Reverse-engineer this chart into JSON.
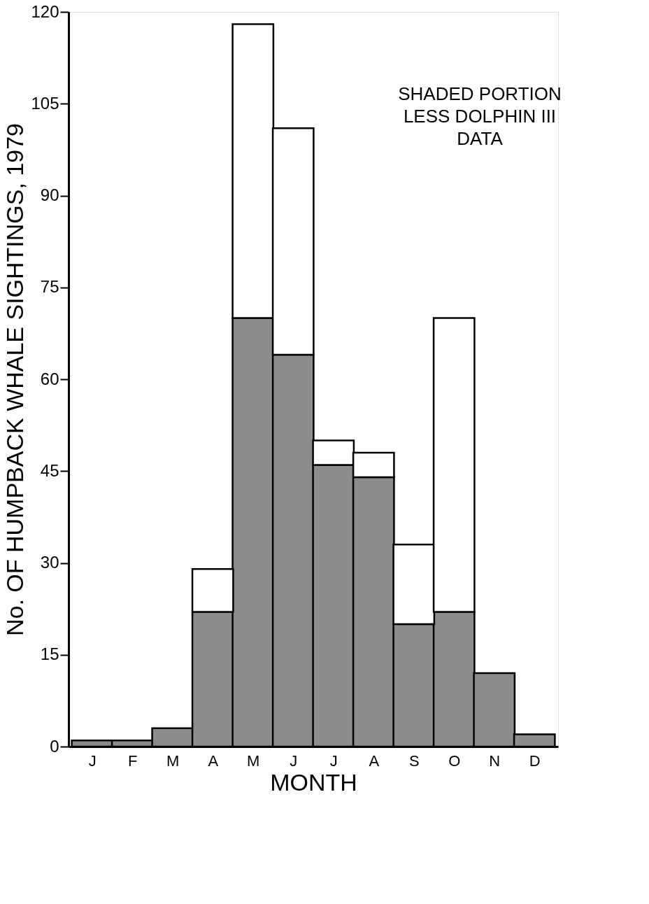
{
  "chart_data": {
    "type": "bar",
    "stacked": true,
    "xlabel": "MONTH",
    "ylabel": "No. OF HUMPBACK WHALE SIGHTINGS, 1979",
    "categories": [
      "J",
      "F",
      "M",
      "A",
      "M",
      "J",
      "J",
      "A",
      "S",
      "O",
      "N",
      "D"
    ],
    "series": [
      {
        "color": "#8c8c8c",
        "values": [
          1,
          1,
          3,
          22,
          70,
          64,
          46,
          44,
          20,
          22,
          12,
          2
        ]
      },
      {
        "color": "#ffffff",
        "values": [
          0,
          0,
          0,
          7,
          48,
          37,
          4,
          4,
          13,
          48,
          0,
          0
        ]
      }
    ],
    "ylim": [
      0,
      120
    ],
    "yticks": [
      0,
      15,
      30,
      45,
      60,
      75,
      90,
      105,
      120
    ],
    "grid": false,
    "legend": false,
    "annotations": [
      "SHADED PORTION\nLESS DOLPHIN III\nDATA"
    ]
  }
}
